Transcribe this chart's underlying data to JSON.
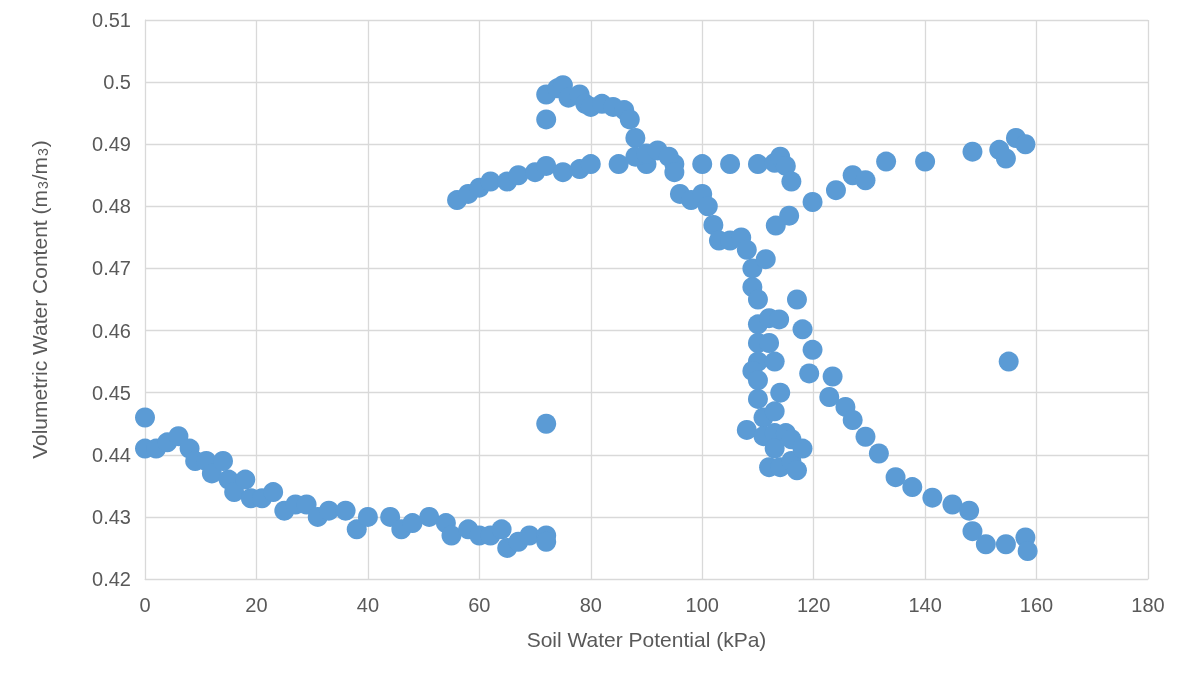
{
  "chart_data": {
    "type": "scatter",
    "xlabel": "Soil Water Potential (kPa)",
    "ylabel": "Volumetric Water Content (m$_{3}$/m$_{3}$)",
    "xlim": [
      0,
      180
    ],
    "xticks": [
      0,
      20,
      40,
      60,
      80,
      100,
      120,
      140,
      160,
      180
    ],
    "ylim": [
      0.42,
      0.51
    ],
    "yticks": [
      0.42,
      0.43,
      0.44,
      0.45,
      0.46,
      0.47,
      0.48,
      0.49,
      0.5,
      0.51
    ],
    "grid": true,
    "marker": "circle",
    "series": [
      {
        "color": "#5b9bd5",
        "x": [
          0,
          0,
          2,
          4,
          6,
          8,
          9,
          11,
          12,
          14,
          15,
          16,
          18,
          19,
          21,
          23,
          25,
          27,
          29,
          31,
          33,
          36,
          38,
          40,
          44,
          46,
          48,
          51,
          54,
          55,
          58,
          60,
          62,
          64,
          65,
          67,
          69,
          72,
          72,
          72,
          155,
          117,
          56,
          58,
          60,
          62,
          65,
          67,
          70,
          72,
          75,
          78,
          80,
          85,
          90,
          95,
          100,
          105,
          110,
          113,
          114,
          115,
          116,
          72,
          72,
          74,
          75,
          76,
          78,
          79,
          80,
          82,
          84,
          86,
          87,
          88,
          88,
          90,
          92,
          94,
          95,
          96,
          98,
          100,
          101,
          102,
          103,
          105,
          107,
          108,
          109,
          109,
          110,
          110,
          110,
          110,
          109,
          110,
          110,
          111,
          108,
          111,
          113,
          115,
          116,
          113,
          112,
          114,
          116,
          117,
          118,
          112,
          112,
          113,
          114,
          113,
          111.4,
          113.2,
          115.6,
          119.8,
          124,
          127,
          129.3,
          133,
          140,
          148.5,
          153.3,
          154.5,
          156.3,
          158,
          113.8,
          118,
          119.8,
          119.2,
          123.4,
          122.8,
          125.7,
          127,
          129.3,
          131.7,
          134.7,
          137.7,
          141.3,
          144.9,
          147.9,
          148.5,
          150.9,
          154.5,
          158,
          158.4
        ],
        "values": [
          0.446,
          0.441,
          0.441,
          0.442,
          0.443,
          0.441,
          0.439,
          0.439,
          0.437,
          0.439,
          0.436,
          0.434,
          0.436,
          0.433,
          0.433,
          0.434,
          0.431,
          0.432,
          0.432,
          0.43,
          0.431,
          0.431,
          0.428,
          0.43,
          0.43,
          0.428,
          0.429,
          0.43,
          0.429,
          0.427,
          0.428,
          0.427,
          0.427,
          0.428,
          0.425,
          0.426,
          0.427,
          0.427,
          0.426,
          0.445,
          0.455,
          0.465,
          0.481,
          0.482,
          0.483,
          0.484,
          0.484,
          0.485,
          0.4855,
          0.4865,
          0.4855,
          0.486,
          0.4868,
          0.4868,
          0.4868,
          0.4868,
          0.4868,
          0.4868,
          0.4868,
          0.487,
          0.488,
          0.4865,
          0.484,
          0.494,
          0.498,
          0.499,
          0.4995,
          0.4975,
          0.498,
          0.4965,
          0.496,
          0.4965,
          0.496,
          0.4955,
          0.494,
          0.491,
          0.488,
          0.4885,
          0.489,
          0.488,
          0.4855,
          0.482,
          0.481,
          0.482,
          0.48,
          0.477,
          0.4745,
          0.4745,
          0.475,
          0.473,
          0.47,
          0.467,
          0.465,
          0.461,
          0.458,
          0.455,
          0.4535,
          0.452,
          0.449,
          0.446,
          0.444,
          0.443,
          0.4435,
          0.4435,
          0.4425,
          0.441,
          0.438,
          0.438,
          0.439,
          0.4375,
          0.441,
          0.462,
          0.458,
          0.455,
          0.45,
          0.447,
          0.4715,
          0.4769,
          0.4785,
          0.4807,
          0.4826,
          0.485,
          0.4842,
          0.4872,
          0.4872,
          0.4888,
          0.4891,
          0.4877,
          0.491,
          0.49,
          0.4618,
          0.4602,
          0.4569,
          0.4531,
          0.4526,
          0.4493,
          0.4477,
          0.4456,
          0.4429,
          0.4402,
          0.4364,
          0.4348,
          0.4331,
          0.432,
          0.431,
          0.4277,
          0.4256,
          0.4256,
          0.4267,
          0.4245
        ]
      }
    ]
  }
}
